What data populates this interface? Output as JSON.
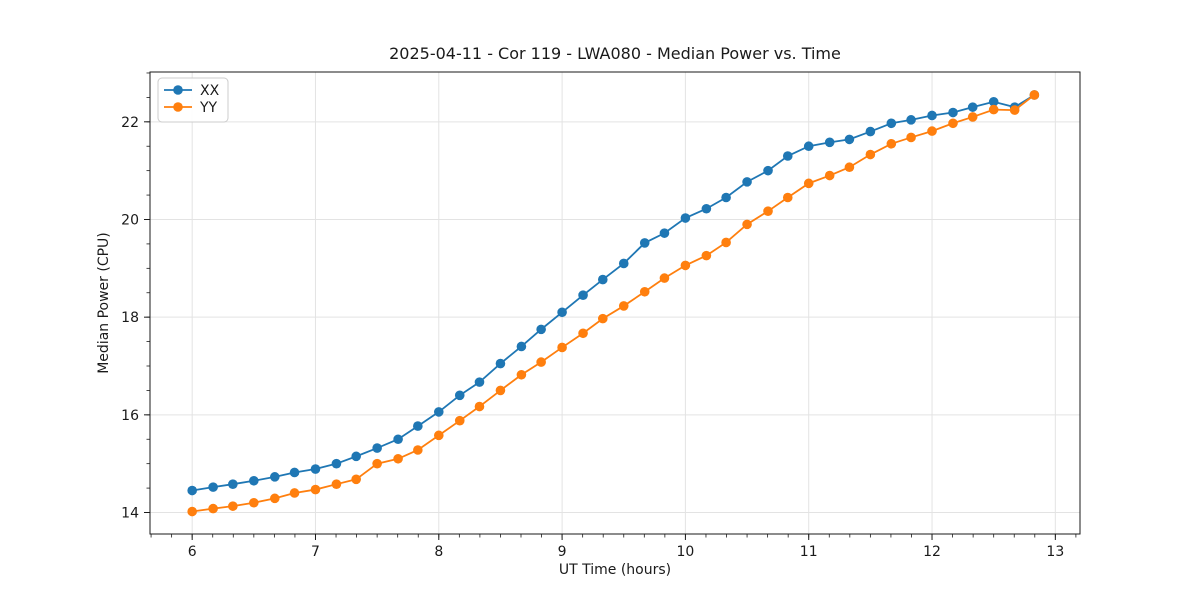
{
  "figure": {
    "background": "#ffffff",
    "text_color": "#1a1a1a",
    "grid_color": "#e3e3e3",
    "spine_color": "#1a1a1a"
  },
  "chart_data": {
    "type": "line",
    "title": "2025-04-11 - Cor 119 - LWA080 - Median Power vs. Time",
    "xlabel": "UT Time (hours)",
    "ylabel": "Median Power (CPU)",
    "xlim": [
      5.658,
      13.2
    ],
    "ylim": [
      13.56,
      23.02
    ],
    "grid": true,
    "legend_position": "upper-left",
    "marker": "circle",
    "xticks": {
      "values": [
        6,
        7,
        8,
        9,
        10,
        11,
        12,
        13
      ],
      "labels": [
        "6",
        "7",
        "8",
        "9",
        "10",
        "11",
        "12",
        "13"
      ]
    },
    "yticks": {
      "values": [
        14,
        16,
        18,
        20,
        22
      ],
      "labels": [
        "14",
        "16",
        "18",
        "20",
        "22"
      ]
    },
    "minor_x_step": 0.166667,
    "minor_y_step": 0.5,
    "x": [
      6.0,
      6.17,
      6.33,
      6.5,
      6.67,
      6.83,
      7.0,
      7.17,
      7.33,
      7.5,
      7.67,
      7.83,
      8.0,
      8.17,
      8.33,
      8.5,
      8.67,
      8.83,
      9.0,
      9.17,
      9.33,
      9.5,
      9.67,
      9.83,
      10.0,
      10.17,
      10.33,
      10.5,
      10.67,
      10.83,
      11.0,
      11.17,
      11.33,
      11.5,
      11.67,
      11.83,
      12.0,
      12.17,
      12.33,
      12.5,
      12.67,
      12.83
    ],
    "series": [
      {
        "name": "XX",
        "color": "#1f77b4",
        "values": [
          14.45,
          14.52,
          14.58,
          14.65,
          14.73,
          14.82,
          14.89,
          15.0,
          15.15,
          15.32,
          15.5,
          15.77,
          16.06,
          16.4,
          16.67,
          17.05,
          17.4,
          17.75,
          18.1,
          18.45,
          18.77,
          19.1,
          19.52,
          19.72,
          20.03,
          20.22,
          20.45,
          20.77,
          21.0,
          21.3,
          21.5,
          21.58,
          21.64,
          21.8,
          21.97,
          22.04,
          22.13,
          22.19,
          22.3,
          22.41,
          22.3,
          22.55
        ]
      },
      {
        "name": "YY",
        "color": "#ff7f0e",
        "values": [
          14.02,
          14.08,
          14.13,
          14.2,
          14.29,
          14.4,
          14.47,
          14.58,
          14.68,
          15.0,
          15.1,
          15.28,
          15.58,
          15.88,
          16.17,
          16.5,
          16.82,
          17.08,
          17.38,
          17.67,
          17.97,
          18.23,
          18.52,
          18.8,
          19.06,
          19.26,
          19.53,
          19.9,
          20.17,
          20.45,
          20.74,
          20.9,
          21.07,
          21.33,
          21.55,
          21.68,
          21.81,
          21.97,
          22.1,
          22.25,
          22.24,
          22.55
        ]
      }
    ]
  }
}
